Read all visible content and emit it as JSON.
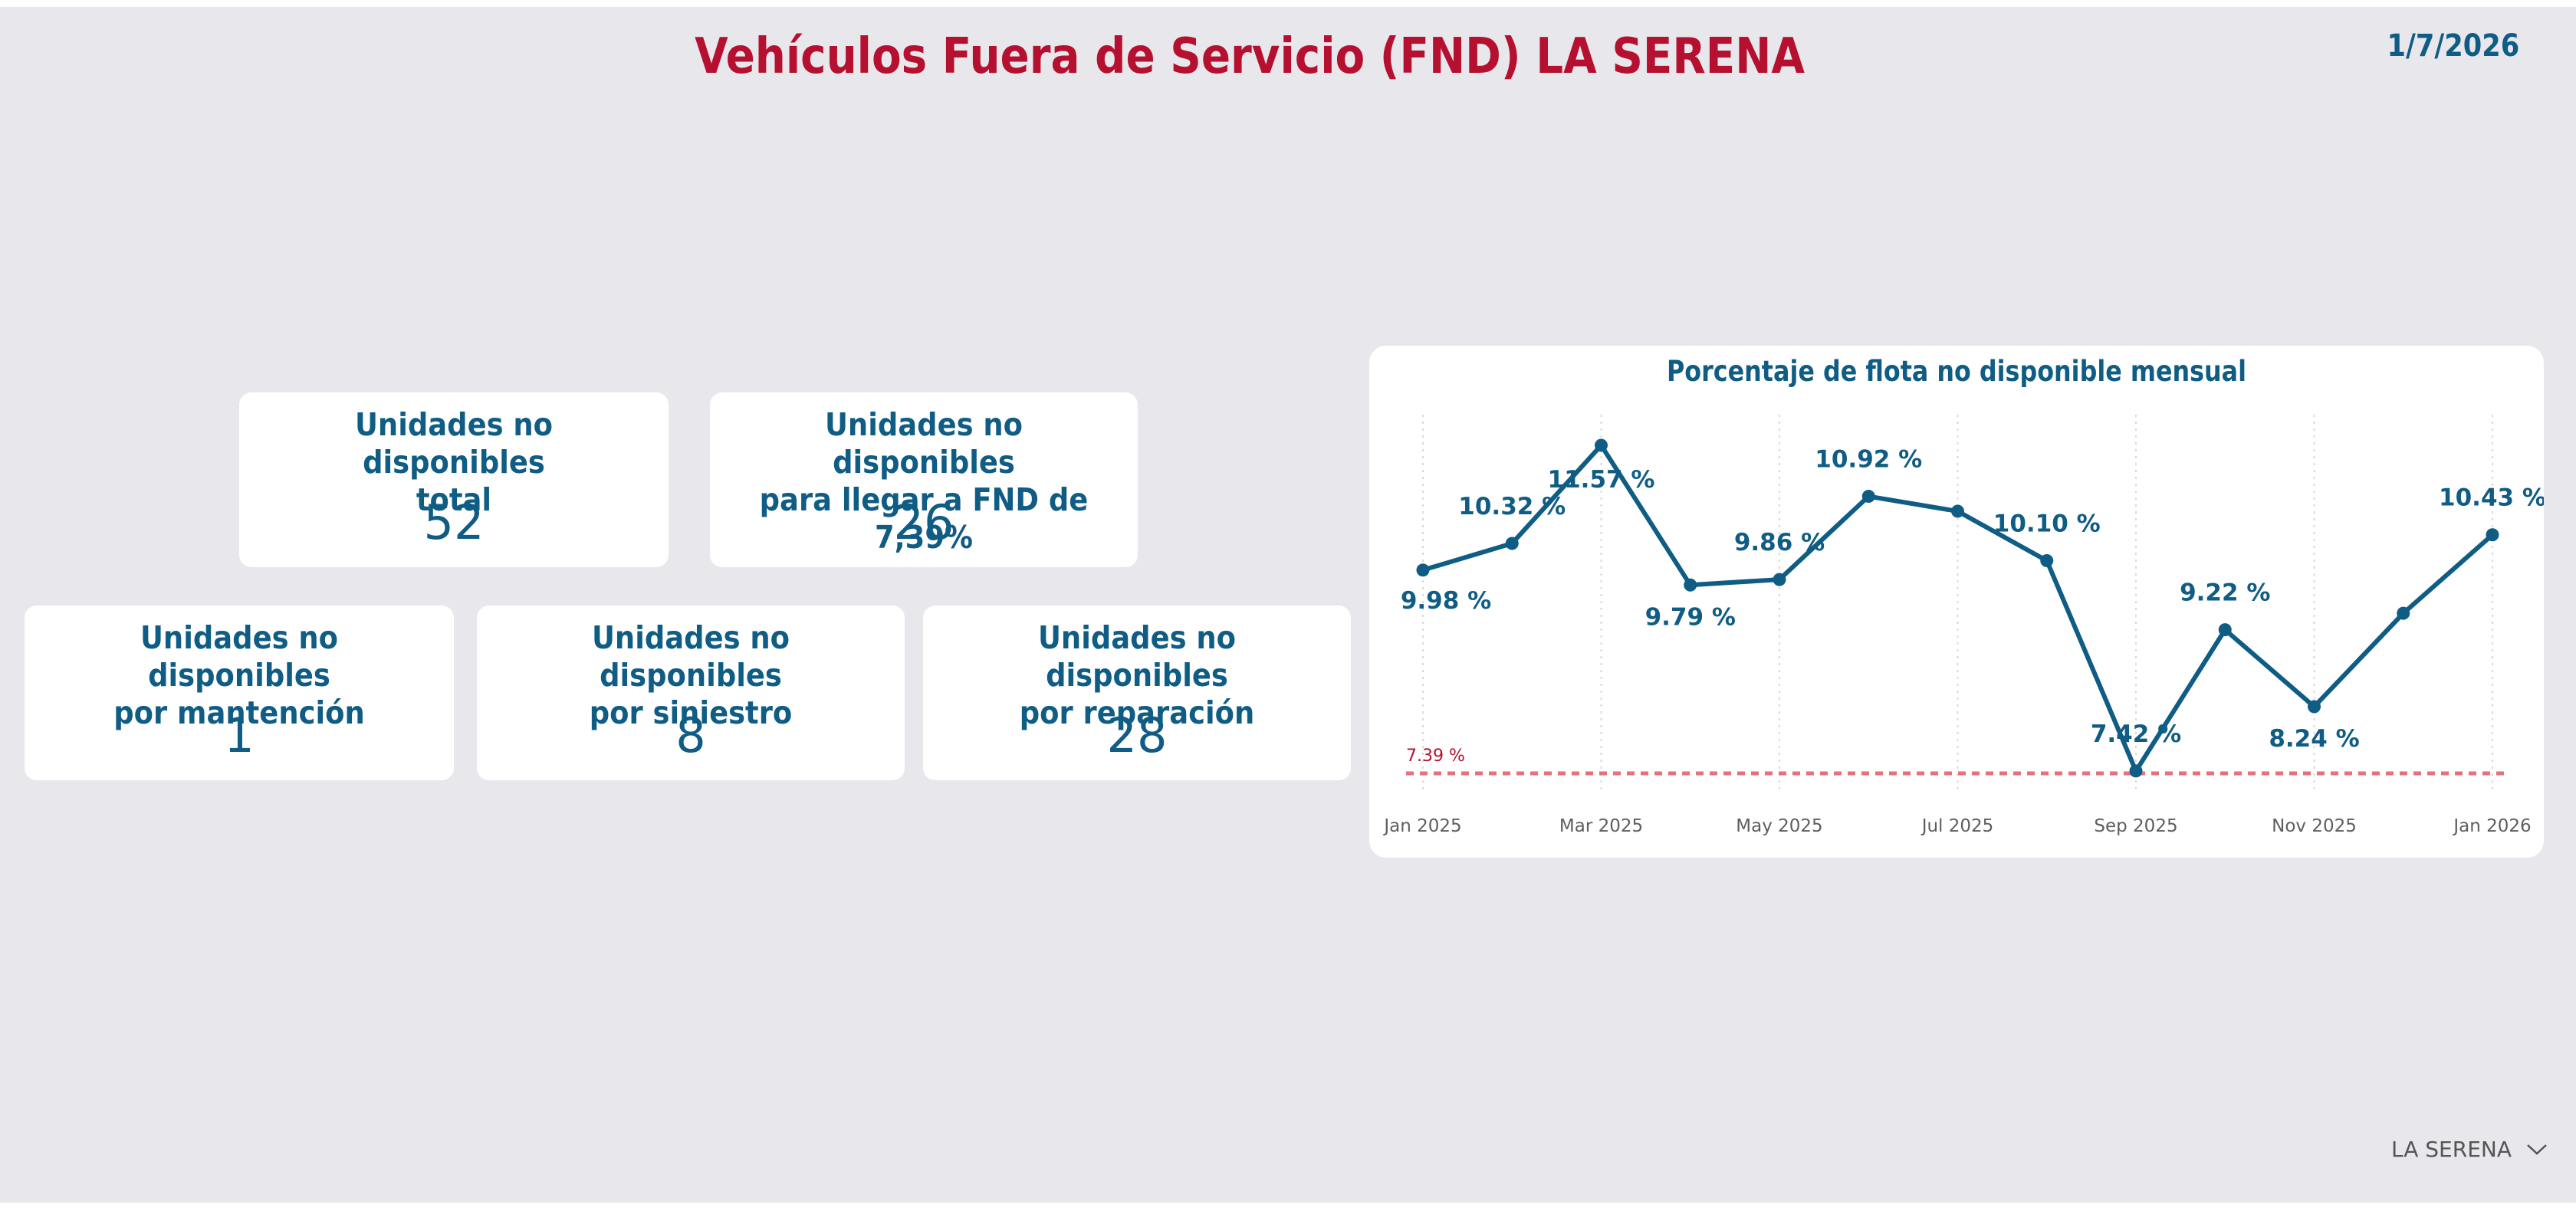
{
  "header": {
    "title": "Vehículos Fuera de Servicio (FND) LA SERENA",
    "date": "1/7/2026"
  },
  "cards": [
    {
      "label_line1": "Unidades no disponibles",
      "label_line2": "total",
      "value": "52"
    },
    {
      "label_line1": "Unidades no disponibles",
      "label_line2": "para llegar a FND de 7,39%",
      "value": "26"
    },
    {
      "label_line1": "Unidades no disponibles",
      "label_line2": "por mantención",
      "value": "1"
    },
    {
      "label_line1": "Unidades no disponibles",
      "label_line2": "por siniestro",
      "value": "8"
    },
    {
      "label_line1": "Unidades no disponibles",
      "label_line2": "por reparación",
      "value": "28"
    }
  ],
  "slicer": {
    "selected": "LA SERENA"
  },
  "colors": {
    "accent": "#b5102f",
    "primary": "#0f5c84",
    "target": "#e8707c"
  },
  "chart_data": {
    "type": "line",
    "title": "Porcentaje de flota no disponible mensual",
    "x": [
      "Jan 2025",
      "Feb 2025",
      "Mar 2025",
      "Apr 2025",
      "May 2025",
      "Jun 2025",
      "Jul 2025",
      "Aug 2025",
      "Sep 2025",
      "Oct 2025",
      "Nov 2025",
      "Dec 2025",
      "Jan 2026"
    ],
    "x_tick_labels": [
      "Jan 2025",
      "Mar 2025",
      "May 2025",
      "Jul 2025",
      "Sep 2025",
      "Nov 2025",
      "Jan 2026"
    ],
    "series": [
      {
        "name": "Porcentaje de flota no disponible",
        "values": [
          9.98,
          10.32,
          11.57,
          9.79,
          9.86,
          10.92,
          10.73,
          10.1,
          7.42,
          9.22,
          8.24,
          9.43,
          10.43
        ]
      }
    ],
    "data_labels": [
      {
        "index": 0,
        "text": "9.98 %"
      },
      {
        "index": 1,
        "text": "10.32 %"
      },
      {
        "index": 2,
        "text": "11.57 %"
      },
      {
        "index": 3,
        "text": "9.79 %"
      },
      {
        "index": 4,
        "text": "9.86 %"
      },
      {
        "index": 5,
        "text": "10.92 %"
      },
      {
        "index": 7,
        "text": "10.10 %"
      },
      {
        "index": 8,
        "text": "7.42 %"
      },
      {
        "index": 9,
        "text": "9.22 %"
      },
      {
        "index": 10,
        "text": "8.24 %"
      },
      {
        "index": 12,
        "text": "10.43 %"
      }
    ],
    "reference_line": {
      "value": 7.39,
      "label": "7.39 %"
    },
    "ylim": [
      7.39,
      11.57
    ],
    "xlabel": "",
    "ylabel": "",
    "grid": "vertical dotted"
  }
}
